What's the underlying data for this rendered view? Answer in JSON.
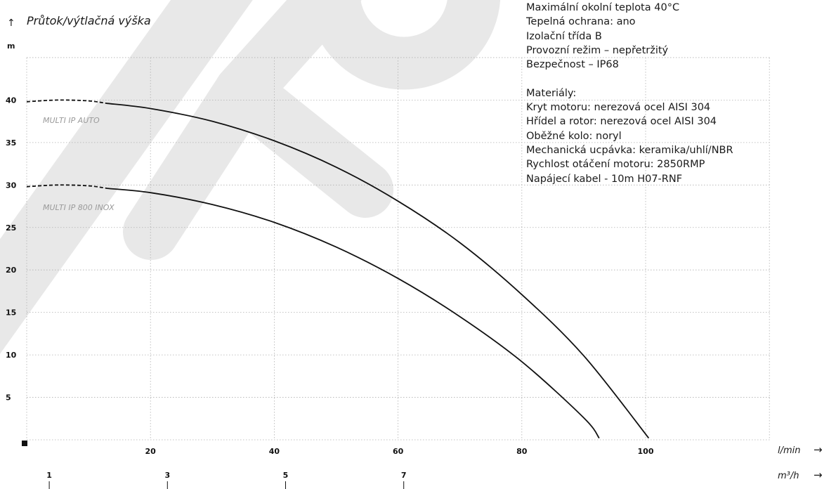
{
  "chart_data": {
    "type": "line",
    "ylabel": "Průtok/výtlačná výška",
    "yunit": "m",
    "ylim": [
      0,
      45
    ],
    "y_ticks": [
      5,
      10,
      15,
      20,
      25,
      30,
      35,
      40
    ],
    "xlim": [
      0,
      108
    ],
    "x_ticks": [
      20,
      40,
      60,
      80,
      100
    ],
    "x_unit": "l/min",
    "x2_unit": "m³/h",
    "x2_ticks": [
      1,
      3,
      5,
      7
    ],
    "grid": true,
    "series": [
      {
        "name": "MULTI IP AUTO",
        "x": [
          0,
          5,
          10,
          13,
          20,
          30,
          40,
          50,
          60,
          70,
          80,
          90,
          100.5
        ],
        "y": [
          39.8,
          40,
          39.9,
          39.6,
          39,
          37.5,
          35.2,
          32.1,
          28.1,
          23.2,
          17.1,
          9.9,
          0.2
        ],
        "dashed_until_x": 13
      },
      {
        "name": "MULTI IP 800 INOX",
        "x": [
          0,
          5,
          10,
          13,
          20,
          30,
          40,
          50,
          60,
          70,
          80,
          90,
          92.5
        ],
        "y": [
          29.8,
          30,
          29.9,
          29.6,
          29.1,
          27.7,
          25.6,
          22.7,
          19,
          14.5,
          9.2,
          2.6,
          0.2
        ],
        "dashed_until_x": 13
      }
    ]
  },
  "specs": {
    "lines": [
      "Maximální okolní teplota 40°C",
      "Tepelná ochrana: ano",
      "Izolační třída B",
      "Provozní režim – nepřetržitý",
      "Bezpečnost – IP68"
    ],
    "materials_heading": "Materiály:",
    "materials": [
      "Kryt motoru: nerezová ocel AISI 304",
      "Hřídel a rotor: nerezová ocel AISI 304",
      "Oběžné kolo: noryl",
      "Mechanická ucpávka: keramika/uhlí/NBR",
      "Rychlost otáčení motoru: 2850RMP",
      "Napájecí kabel - 10m H07-RNF"
    ]
  },
  "watermark": {
    "color": "#e8e8e8"
  },
  "colors": {
    "curve": "#111111",
    "grid": "#b0b0b0",
    "series_label": "#9a9a9a"
  }
}
